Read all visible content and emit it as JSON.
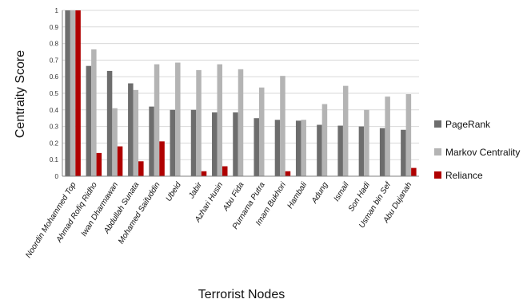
{
  "chart_data": {
    "type": "bar",
    "title": "",
    "xlabel": "Terrorist  Nodes",
    "ylabel": "Centraity  Score",
    "ylim": [
      0,
      1
    ],
    "yticks": [
      0,
      0.1,
      0.2,
      0.3,
      0.4,
      0.5,
      0.6,
      0.7,
      0.8,
      0.9,
      1
    ],
    "ytick_labels": [
      "0",
      "0.1",
      "0.2",
      "0.3",
      "0.4",
      "0.5",
      "0.6",
      "0.7",
      "0.8",
      "0.9",
      "1"
    ],
    "grid": true,
    "legend_position": "right",
    "categories": [
      "Noordin Mohammed Top",
      "Ahmad Rofiq Ridho",
      "Iwan Dharmawan",
      "Abdullah Sunata",
      "Mohamed Saifuddin",
      "Ubeid",
      "Jabir",
      "Azhari Husin",
      "Abu Fida",
      "Purnama Putra",
      "Imam Bukhori",
      "Hambali",
      "Adung",
      "Ismail",
      "Son Hadi",
      "Usman bin Sef",
      "Abu Dujanah"
    ],
    "series": [
      {
        "name": "PageRank",
        "color": "#6d6d6d",
        "values": [
          1.0,
          0.665,
          0.635,
          0.56,
          0.42,
          0.4,
          0.4,
          0.385,
          0.385,
          0.35,
          0.34,
          0.335,
          0.31,
          0.305,
          0.3,
          0.29,
          0.28
        ]
      },
      {
        "name": "Markov Centrality",
        "color": "#b4b4b4",
        "values": [
          1.0,
          0.765,
          0.41,
          0.52,
          0.675,
          0.685,
          0.64,
          0.675,
          0.645,
          0.535,
          0.605,
          0.34,
          0.435,
          0.545,
          0.4,
          0.48,
          0.495
        ]
      },
      {
        "name": "Reliance",
        "color": "#b00000",
        "values": [
          1.0,
          0.14,
          0.18,
          0.09,
          0.21,
          0.0,
          0.03,
          0.06,
          0.0,
          0.0,
          0.03,
          0.0,
          0.0,
          0.0,
          0.0,
          0.0,
          0.05
        ]
      }
    ]
  }
}
